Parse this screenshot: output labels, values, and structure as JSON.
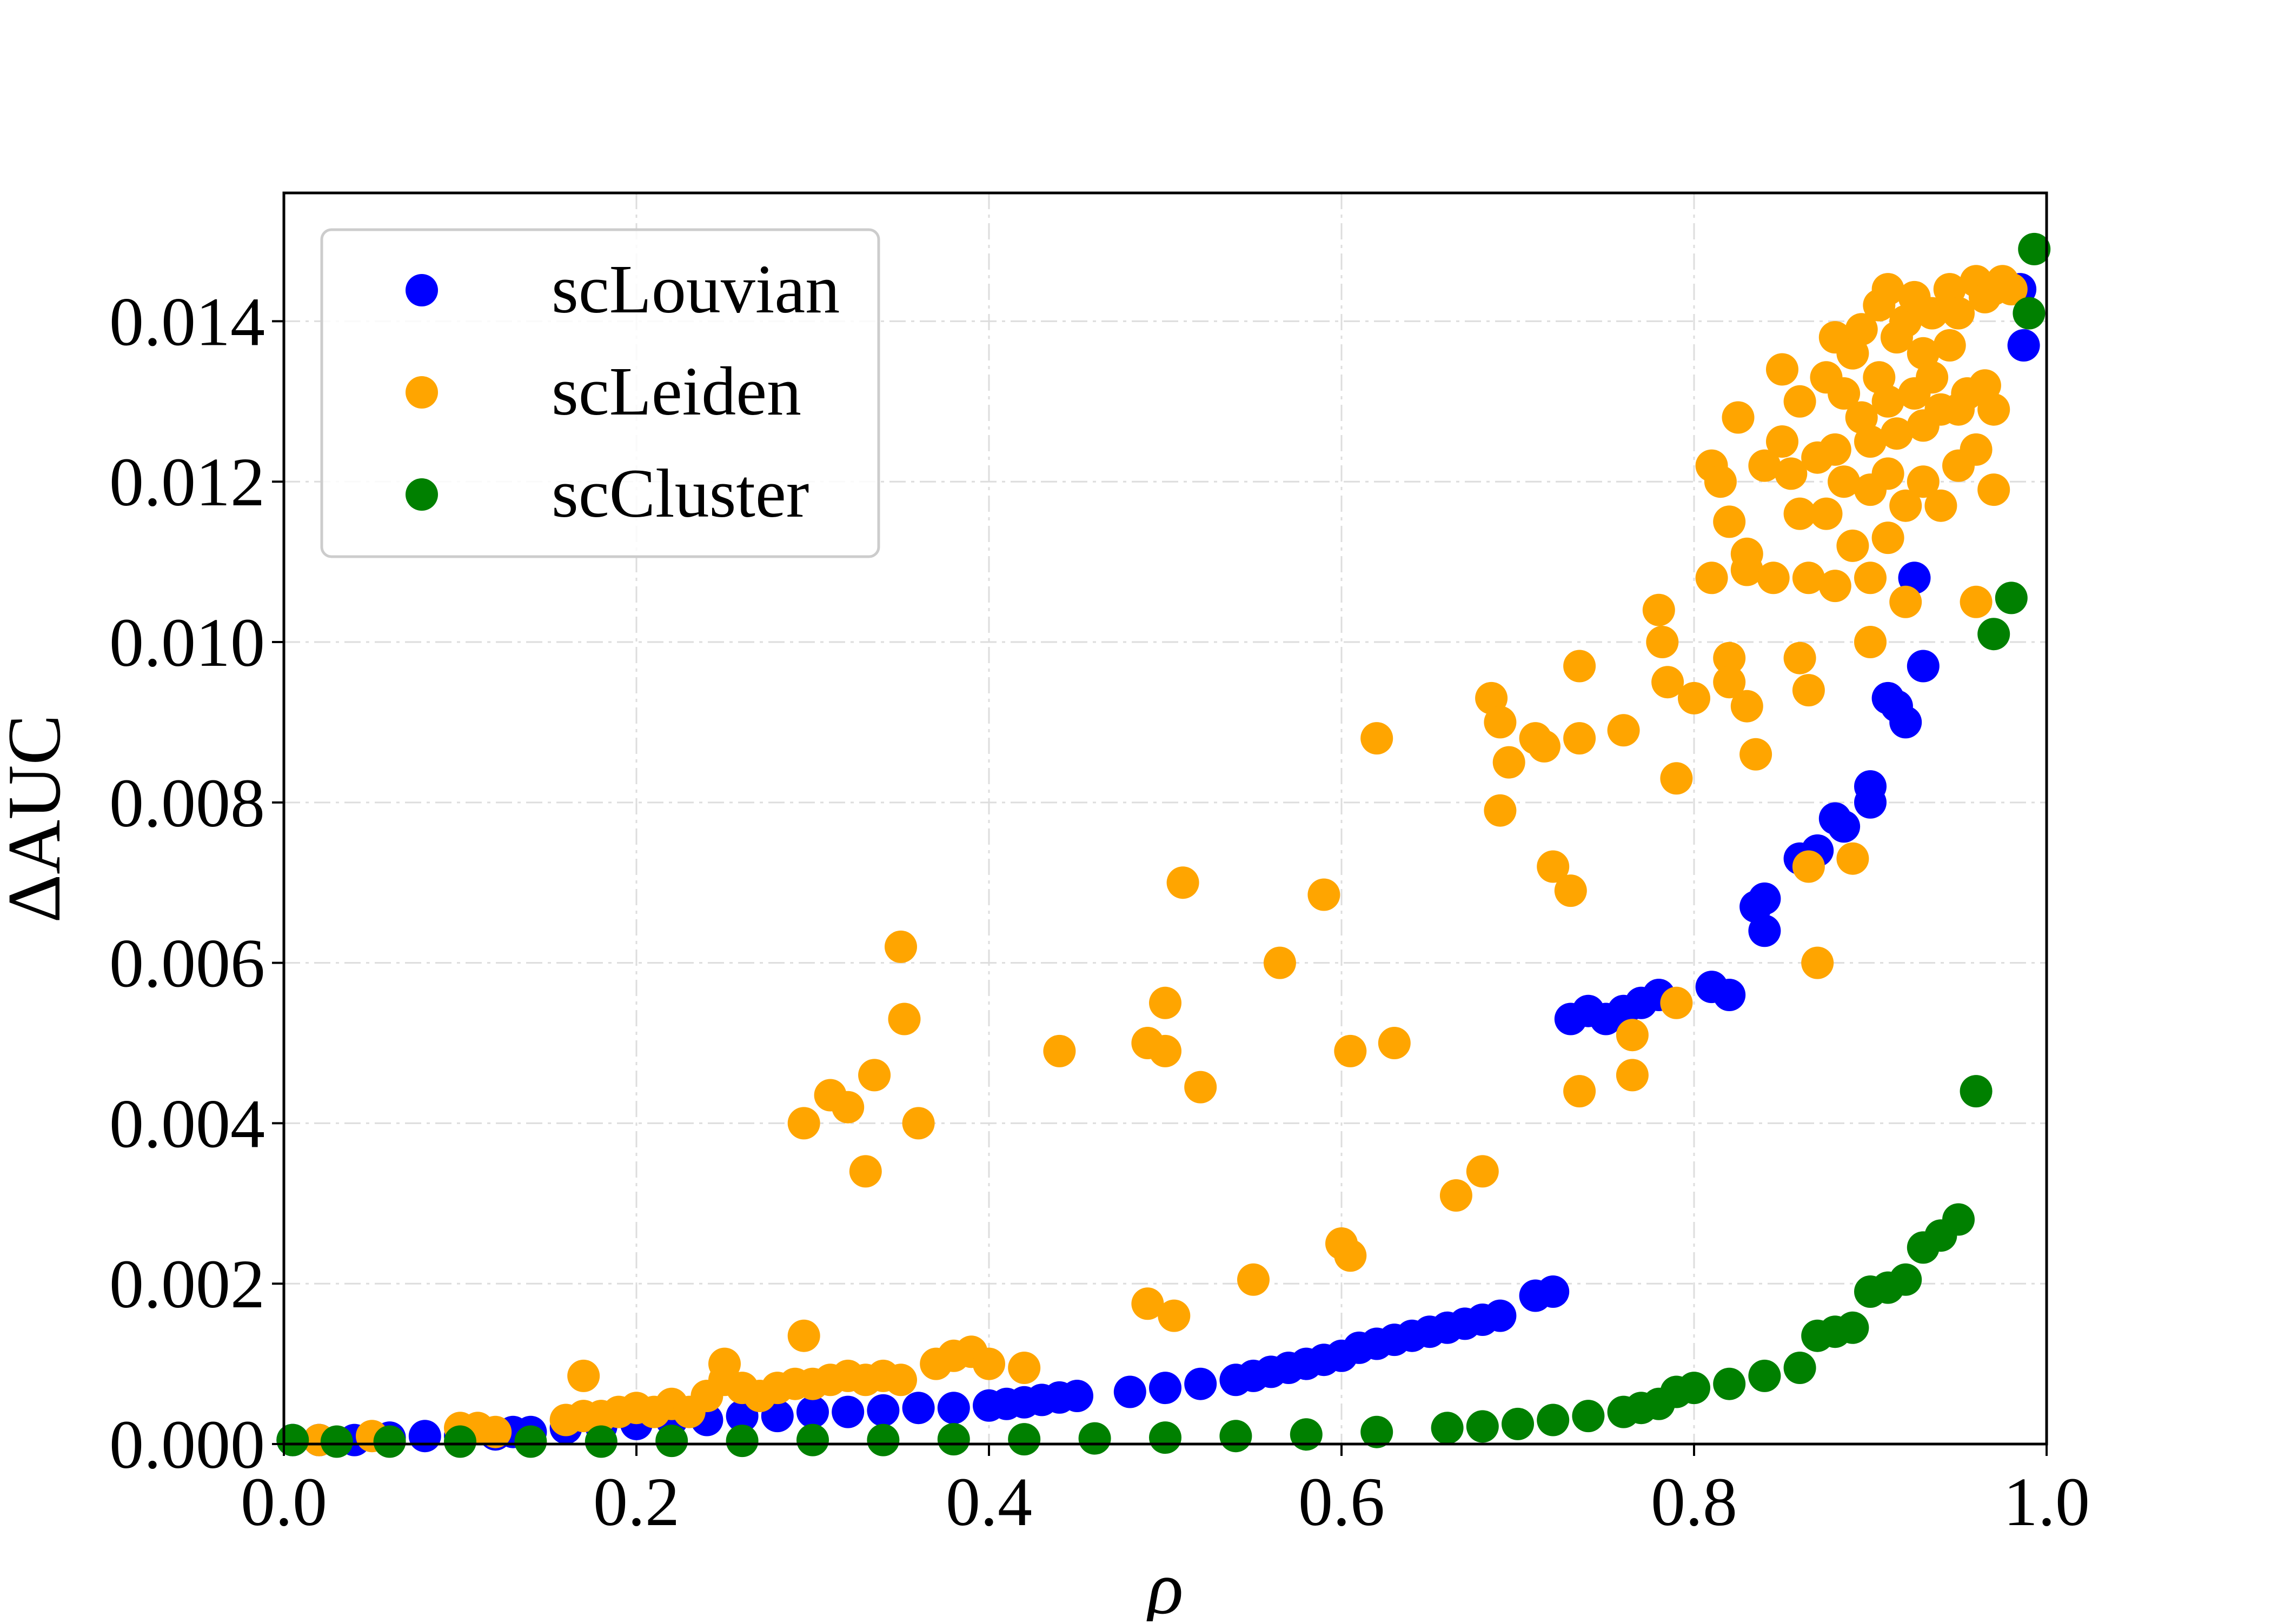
{
  "chart_data": {
    "type": "scatter",
    "xlabel": "ρ",
    "ylabel": "ΔAUC",
    "xlim": [
      0.0,
      1.0
    ],
    "ylim": [
      0.0,
      0.0156
    ],
    "xticks": [
      "0.0",
      "0.2",
      "0.4",
      "0.6",
      "0.8",
      "1.0"
    ],
    "xtick_values": [
      0.0,
      0.2,
      0.4,
      0.6,
      0.8,
      1.0
    ],
    "yticks": [
      "0.000",
      "0.002",
      "0.004",
      "0.006",
      "0.008",
      "0.010",
      "0.012",
      "0.014"
    ],
    "ytick_values": [
      0.0,
      0.002,
      0.004,
      0.006,
      0.008,
      0.01,
      0.012,
      0.014
    ],
    "grid": true,
    "legend_position": "top-left",
    "series": [
      {
        "name": "scLouvian",
        "color": "#0000ff",
        "points": [
          [
            0.005,
            5e-05
          ],
          [
            0.02,
            5e-05
          ],
          [
            0.04,
            5e-05
          ],
          [
            0.06,
            8e-05
          ],
          [
            0.08,
            0.0001
          ],
          [
            0.1,
            0.0001
          ],
          [
            0.12,
            0.00012
          ],
          [
            0.13,
            0.00015
          ],
          [
            0.14,
            0.00015
          ],
          [
            0.16,
            0.0002
          ],
          [
            0.18,
            0.00022
          ],
          [
            0.2,
            0.00025
          ],
          [
            0.22,
            0.0003
          ],
          [
            0.24,
            0.0003
          ],
          [
            0.26,
            0.00035
          ],
          [
            0.28,
            0.00035
          ],
          [
            0.3,
            0.0004
          ],
          [
            0.32,
            0.0004
          ],
          [
            0.34,
            0.00042
          ],
          [
            0.36,
            0.00045
          ],
          [
            0.38,
            0.00045
          ],
          [
            0.4,
            0.00048
          ],
          [
            0.41,
            0.0005
          ],
          [
            0.42,
            0.00052
          ],
          [
            0.43,
            0.00055
          ],
          [
            0.44,
            0.00058
          ],
          [
            0.45,
            0.0006
          ],
          [
            0.48,
            0.00065
          ],
          [
            0.5,
            0.0007
          ],
          [
            0.52,
            0.00075
          ],
          [
            0.54,
            0.0008
          ],
          [
            0.55,
            0.00085
          ],
          [
            0.56,
            0.0009
          ],
          [
            0.57,
            0.00095
          ],
          [
            0.58,
            0.001
          ],
          [
            0.59,
            0.00105
          ],
          [
            0.6,
            0.0011
          ],
          [
            0.61,
            0.0012
          ],
          [
            0.62,
            0.00125
          ],
          [
            0.63,
            0.0013
          ],
          [
            0.64,
            0.00135
          ],
          [
            0.65,
            0.0014
          ],
          [
            0.66,
            0.00145
          ],
          [
            0.67,
            0.0015
          ],
          [
            0.68,
            0.00155
          ],
          [
            0.69,
            0.0016
          ],
          [
            0.71,
            0.00185
          ],
          [
            0.72,
            0.0019
          ],
          [
            0.73,
            0.0053
          ],
          [
            0.74,
            0.0054
          ],
          [
            0.75,
            0.0053
          ],
          [
            0.76,
            0.0054
          ],
          [
            0.77,
            0.0055
          ],
          [
            0.78,
            0.0056
          ],
          [
            0.81,
            0.0057
          ],
          [
            0.82,
            0.0056
          ],
          [
            0.835,
            0.0067
          ],
          [
            0.84,
            0.0068
          ],
          [
            0.84,
            0.0064
          ],
          [
            0.86,
            0.0073
          ],
          [
            0.87,
            0.0074
          ],
          [
            0.88,
            0.0078
          ],
          [
            0.885,
            0.0077
          ],
          [
            0.9,
            0.008
          ],
          [
            0.9,
            0.0082
          ],
          [
            0.91,
            0.0093
          ],
          [
            0.915,
            0.0092
          ],
          [
            0.92,
            0.009
          ],
          [
            0.925,
            0.0108
          ],
          [
            0.93,
            0.0097
          ],
          [
            0.985,
            0.0144
          ],
          [
            0.987,
            0.0137
          ]
        ]
      },
      {
        "name": "scLeiden",
        "color": "#ffa500",
        "points": [
          [
            0.02,
            5e-05
          ],
          [
            0.05,
            0.0001
          ],
          [
            0.1,
            0.0002
          ],
          [
            0.11,
            0.0002
          ],
          [
            0.12,
            0.00015
          ],
          [
            0.16,
            0.0003
          ],
          [
            0.17,
            0.00035
          ],
          [
            0.17,
            0.00085
          ],
          [
            0.18,
            0.00035
          ],
          [
            0.19,
            0.0004
          ],
          [
            0.2,
            0.00045
          ],
          [
            0.21,
            0.0004
          ],
          [
            0.22,
            0.0005
          ],
          [
            0.23,
            0.0004
          ],
          [
            0.24,
            0.0006
          ],
          [
            0.25,
            0.0008
          ],
          [
            0.25,
            0.001
          ],
          [
            0.26,
            0.0007
          ],
          [
            0.27,
            0.0006
          ],
          [
            0.28,
            0.0007
          ],
          [
            0.29,
            0.00075
          ],
          [
            0.295,
            0.00135
          ],
          [
            0.3,
            0.00075
          ],
          [
            0.31,
            0.0008
          ],
          [
            0.32,
            0.00085
          ],
          [
            0.33,
            0.0008
          ],
          [
            0.34,
            0.00085
          ],
          [
            0.35,
            0.0008
          ],
          [
            0.37,
            0.001
          ],
          [
            0.38,
            0.0011
          ],
          [
            0.39,
            0.00115
          ],
          [
            0.4,
            0.001
          ],
          [
            0.42,
            0.00095
          ],
          [
            0.295,
            0.004
          ],
          [
            0.31,
            0.00435
          ],
          [
            0.32,
            0.0042
          ],
          [
            0.33,
            0.0034
          ],
          [
            0.335,
            0.0046
          ],
          [
            0.35,
            0.0062
          ],
          [
            0.352,
            0.0053
          ],
          [
            0.36,
            0.004
          ],
          [
            0.44,
            0.0049
          ],
          [
            0.49,
            0.00175
          ],
          [
            0.49,
            0.005
          ],
          [
            0.5,
            0.0055
          ],
          [
            0.5,
            0.0049
          ],
          [
            0.505,
            0.0016
          ],
          [
            0.51,
            0.007
          ],
          [
            0.52,
            0.00445
          ],
          [
            0.55,
            0.00205
          ],
          [
            0.565,
            0.006
          ],
          [
            0.59,
            0.00685
          ],
          [
            0.6,
            0.0025
          ],
          [
            0.605,
            0.00235
          ],
          [
            0.605,
            0.0049
          ],
          [
            0.62,
            0.0088
          ],
          [
            0.63,
            0.005
          ],
          [
            0.665,
            0.0031
          ],
          [
            0.68,
            0.0034
          ],
          [
            0.685,
            0.0093
          ],
          [
            0.69,
            0.009
          ],
          [
            0.69,
            0.0079
          ],
          [
            0.695,
            0.0085
          ],
          [
            0.71,
            0.0088
          ],
          [
            0.715,
            0.0087
          ],
          [
            0.72,
            0.0072
          ],
          [
            0.73,
            0.0069
          ],
          [
            0.735,
            0.0088
          ],
          [
            0.735,
            0.0097
          ],
          [
            0.735,
            0.0044
          ],
          [
            0.76,
            0.0089
          ],
          [
            0.765,
            0.0046
          ],
          [
            0.765,
            0.0051
          ],
          [
            0.78,
            0.0104
          ],
          [
            0.782,
            0.01
          ],
          [
            0.785,
            0.0095
          ],
          [
            0.79,
            0.0083
          ],
          [
            0.79,
            0.0055
          ],
          [
            0.8,
            0.0093
          ],
          [
            0.81,
            0.0108
          ],
          [
            0.81,
            0.0122
          ],
          [
            0.815,
            0.012
          ],
          [
            0.82,
            0.0115
          ],
          [
            0.82,
            0.0098
          ],
          [
            0.82,
            0.0095
          ],
          [
            0.825,
            0.0128
          ],
          [
            0.83,
            0.0111
          ],
          [
            0.83,
            0.0092
          ],
          [
            0.83,
            0.0109
          ],
          [
            0.835,
            0.0086
          ],
          [
            0.84,
            0.0122
          ],
          [
            0.845,
            0.0108
          ],
          [
            0.85,
            0.0134
          ],
          [
            0.85,
            0.0125
          ],
          [
            0.855,
            0.0121
          ],
          [
            0.86,
            0.013
          ],
          [
            0.86,
            0.0116
          ],
          [
            0.86,
            0.0098
          ],
          [
            0.865,
            0.0108
          ],
          [
            0.865,
            0.0094
          ],
          [
            0.865,
            0.0072
          ],
          [
            0.87,
            0.006
          ],
          [
            0.87,
            0.0123
          ],
          [
            0.875,
            0.0133
          ],
          [
            0.875,
            0.0116
          ],
          [
            0.88,
            0.0138
          ],
          [
            0.88,
            0.0124
          ],
          [
            0.88,
            0.0107
          ],
          [
            0.885,
            0.0131
          ],
          [
            0.885,
            0.012
          ],
          [
            0.89,
            0.0136
          ],
          [
            0.89,
            0.0112
          ],
          [
            0.89,
            0.0073
          ],
          [
            0.895,
            0.0139
          ],
          [
            0.895,
            0.0128
          ],
          [
            0.9,
            0.0125
          ],
          [
            0.9,
            0.0119
          ],
          [
            0.9,
            0.0108
          ],
          [
            0.9,
            0.01
          ],
          [
            0.905,
            0.0142
          ],
          [
            0.905,
            0.0133
          ],
          [
            0.91,
            0.0144
          ],
          [
            0.91,
            0.013
          ],
          [
            0.91,
            0.0121
          ],
          [
            0.91,
            0.0113
          ],
          [
            0.915,
            0.0138
          ],
          [
            0.915,
            0.0126
          ],
          [
            0.92,
            0.014
          ],
          [
            0.92,
            0.0117
          ],
          [
            0.92,
            0.0105
          ],
          [
            0.925,
            0.0143
          ],
          [
            0.925,
            0.0131
          ],
          [
            0.93,
            0.0136
          ],
          [
            0.93,
            0.0127
          ],
          [
            0.93,
            0.012
          ],
          [
            0.935,
            0.0141
          ],
          [
            0.935,
            0.0133
          ],
          [
            0.94,
            0.0129
          ],
          [
            0.94,
            0.0117
          ],
          [
            0.945,
            0.0144
          ],
          [
            0.945,
            0.0137
          ],
          [
            0.95,
            0.0141
          ],
          [
            0.95,
            0.0129
          ],
          [
            0.95,
            0.0122
          ],
          [
            0.955,
            0.0131
          ],
          [
            0.96,
            0.0145
          ],
          [
            0.96,
            0.0124
          ],
          [
            0.96,
            0.0105
          ],
          [
            0.965,
            0.0143
          ],
          [
            0.965,
            0.0132
          ],
          [
            0.97,
            0.0144
          ],
          [
            0.97,
            0.0129
          ],
          [
            0.97,
            0.0119
          ],
          [
            0.975,
            0.0145
          ],
          [
            0.98,
            0.0144
          ]
        ]
      },
      {
        "name": "scCluster",
        "color": "#008000",
        "points": [
          [
            0.005,
            5e-05
          ],
          [
            0.03,
            3e-05
          ],
          [
            0.06,
            3e-05
          ],
          [
            0.1,
            3e-05
          ],
          [
            0.14,
            3e-05
          ],
          [
            0.18,
            3e-05
          ],
          [
            0.22,
            4e-05
          ],
          [
            0.26,
            4e-05
          ],
          [
            0.3,
            5e-05
          ],
          [
            0.34,
            5e-05
          ],
          [
            0.38,
            6e-05
          ],
          [
            0.42,
            6e-05
          ],
          [
            0.46,
            7e-05
          ],
          [
            0.5,
            8e-05
          ],
          [
            0.54,
            0.0001
          ],
          [
            0.58,
            0.00012
          ],
          [
            0.62,
            0.00015
          ],
          [
            0.66,
            0.0002
          ],
          [
            0.68,
            0.00022
          ],
          [
            0.7,
            0.00025
          ],
          [
            0.72,
            0.0003
          ],
          [
            0.74,
            0.00035
          ],
          [
            0.76,
            0.0004
          ],
          [
            0.77,
            0.00045
          ],
          [
            0.78,
            0.0005
          ],
          [
            0.79,
            0.00065
          ],
          [
            0.8,
            0.0007
          ],
          [
            0.82,
            0.00075
          ],
          [
            0.84,
            0.00085
          ],
          [
            0.86,
            0.00095
          ],
          [
            0.87,
            0.00135
          ],
          [
            0.88,
            0.0014
          ],
          [
            0.89,
            0.00145
          ],
          [
            0.9,
            0.0019
          ],
          [
            0.91,
            0.00195
          ],
          [
            0.92,
            0.00205
          ],
          [
            0.93,
            0.00245
          ],
          [
            0.94,
            0.0026
          ],
          [
            0.95,
            0.0028
          ],
          [
            0.96,
            0.0044
          ],
          [
            0.97,
            0.0101
          ],
          [
            0.98,
            0.01055
          ],
          [
            0.99,
            0.0141
          ],
          [
            0.993,
            0.0149
          ]
        ]
      }
    ]
  }
}
